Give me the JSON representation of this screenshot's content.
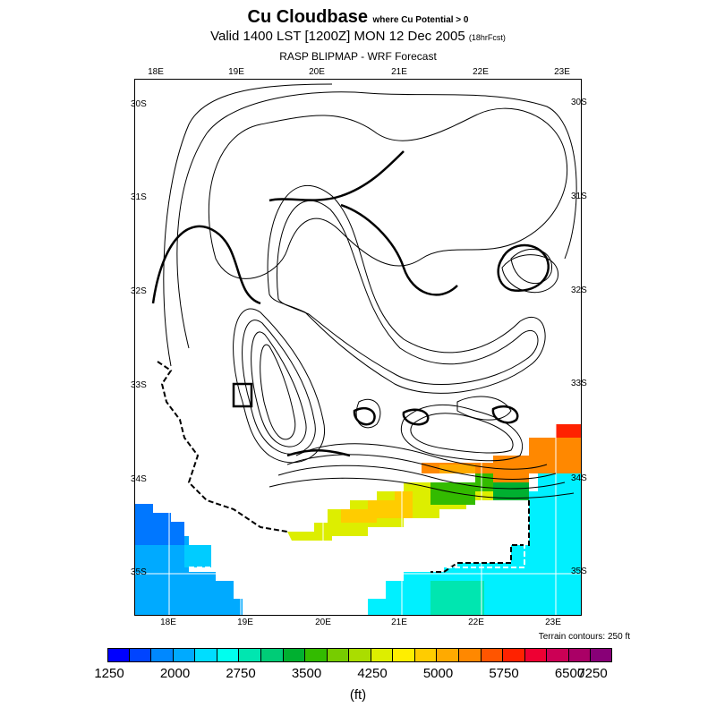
{
  "header": {
    "title": "Cu Cloudbase",
    "title_note": "where Cu Potential > 0",
    "valid": "Valid 1400 LST [1200Z] MON 12 Dec 2005",
    "valid_note": "(18hrFcst)",
    "model": "RASP BLIPMAP - WRF Forecast"
  },
  "axes": {
    "top": [
      "18E",
      "19E",
      "20E",
      "21E",
      "22E",
      "23E"
    ],
    "bottom": [
      "18E",
      "19E",
      "20E",
      "21E",
      "22E",
      "23E"
    ],
    "left": [
      "30S",
      "31S",
      "32S",
      "33S",
      "34S",
      "35S"
    ],
    "right": [
      "30S",
      "31S",
      "32S",
      "33S",
      "34S",
      "35S"
    ]
  },
  "terrain_note": "Terrain contours: 250 ft",
  "colorbar": {
    "colors": [
      "#0000ff",
      "#0044ff",
      "#0088ff",
      "#00aaff",
      "#00ddff",
      "#00ffee",
      "#00e6b0",
      "#00cc77",
      "#00b030",
      "#33bb00",
      "#77cc00",
      "#aadd00",
      "#ddee00",
      "#ffee00",
      "#ffcc00",
      "#ffaa00",
      "#ff8800",
      "#ff5500",
      "#ff2200",
      "#ee0033",
      "#cc0055",
      "#aa0066",
      "#880077"
    ],
    "labels": [
      "1250",
      "2000",
      "2750",
      "3500",
      "4250",
      "5000",
      "5750",
      "6500",
      "7250"
    ],
    "units": "(ft)"
  }
}
